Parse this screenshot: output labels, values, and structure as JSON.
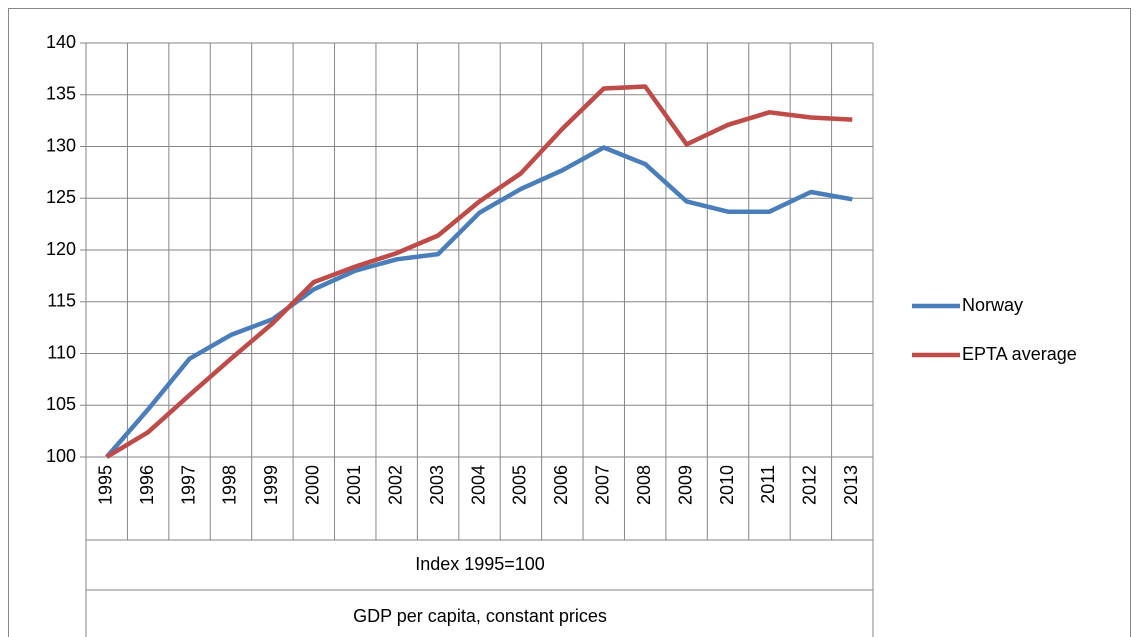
{
  "chart_data": {
    "type": "line",
    "categories": [
      "1995",
      "1996",
      "1997",
      "1998",
      "1999",
      "2000",
      "2001",
      "2002",
      "2003",
      "2004",
      "2005",
      "2006",
      "2007",
      "2008",
      "2009",
      "2010",
      "2011",
      "2012",
      "2013"
    ],
    "category_levels": [
      "Index 1995=100",
      "GDP per capita, constant prices"
    ],
    "series": [
      {
        "name": "Norway",
        "color": "#4a7ebb",
        "values": [
          100,
          104.6,
          109.5,
          111.8,
          113.3,
          116.2,
          118,
          119.1,
          119.6,
          123.6,
          125.9,
          127.7,
          129.9,
          128.3,
          124.7,
          123.7,
          123.7,
          125.6,
          124.9
        ]
      },
      {
        "name": "EPTA average",
        "color": "#be4b48",
        "values": [
          100,
          102.4,
          106,
          109.5,
          112.9,
          116.9,
          118.4,
          119.7,
          121.4,
          124.7,
          127.4,
          131.7,
          135.6,
          135.8,
          130.2,
          132.1,
          133.3,
          132.8,
          132.6
        ]
      }
    ],
    "ylim": [
      100,
      140
    ],
    "yticks": [
      100,
      105,
      110,
      115,
      120,
      125,
      130,
      135,
      140
    ],
    "grid": true,
    "legend": "right"
  }
}
